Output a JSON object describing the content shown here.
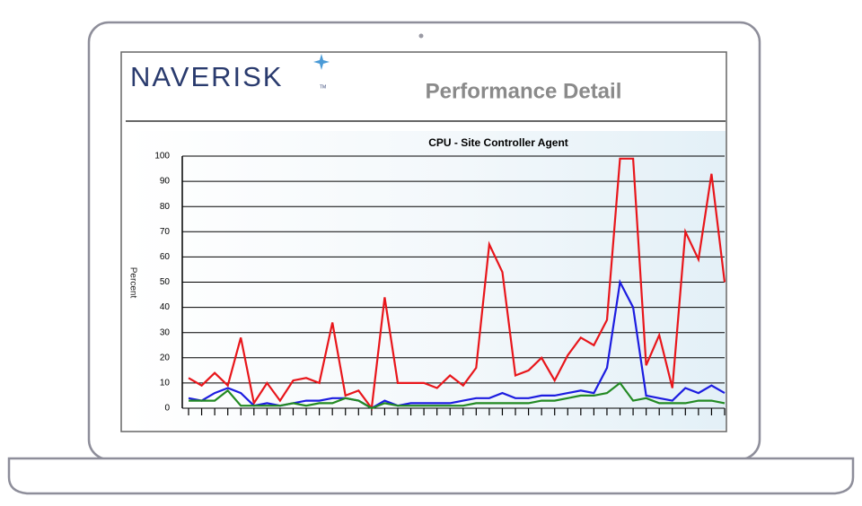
{
  "header": {
    "logo": "NAVERISK",
    "logo_mark": "TM",
    "title": "Performance Detail"
  },
  "chart_data": {
    "type": "line",
    "title": "CPU - Site Controller Agent",
    "y_label": "Percent",
    "categories": [
      null,
      null,
      null,
      null,
      null,
      null,
      null,
      null,
      null,
      null,
      null,
      null,
      null,
      null,
      null,
      null,
      null,
      null,
      null,
      null,
      null,
      null,
      null,
      null,
      null,
      null,
      null,
      null,
      null,
      null,
      null,
      null,
      null,
      null,
      null,
      null,
      null,
      null,
      null,
      null,
      null,
      null
    ],
    "series": [
      {
        "color": "#e8161b",
        "values": [
          12,
          9,
          14,
          9,
          28,
          2,
          10,
          3,
          11,
          12,
          10,
          34,
          5,
          7,
          0,
          44,
          10,
          10,
          10,
          8,
          13,
          9,
          16,
          65,
          54,
          13,
          15,
          20,
          11,
          21,
          28,
          25,
          35,
          99,
          99,
          17,
          29,
          8,
          70,
          59,
          93,
          50
        ]
      },
      {
        "color": "#1c1ce0",
        "values": [
          4,
          3,
          6,
          8,
          6,
          1,
          2,
          1,
          2,
          3,
          3,
          4,
          4,
          3,
          0,
          3,
          1,
          2,
          2,
          2,
          2,
          3,
          4,
          4,
          6,
          4,
          4,
          5,
          5,
          6,
          7,
          6,
          16,
          50,
          40,
          5,
          4,
          3,
          8,
          6,
          9,
          6
        ]
      },
      {
        "color": "#238a23",
        "values": [
          3,
          3,
          3,
          7,
          1,
          1,
          1,
          1,
          2,
          1,
          2,
          2,
          4,
          3,
          0,
          2,
          1,
          1,
          1,
          1,
          1,
          1,
          2,
          2,
          2,
          2,
          2,
          3,
          3,
          4,
          5,
          5,
          6,
          10,
          3,
          4,
          2,
          2,
          2,
          3,
          3,
          2
        ]
      }
    ],
    "ylim": [
      0,
      100
    ],
    "yticks": [
      0,
      10,
      20,
      30,
      40,
      50,
      60,
      70,
      80,
      90,
      100
    ],
    "grid": true
  }
}
